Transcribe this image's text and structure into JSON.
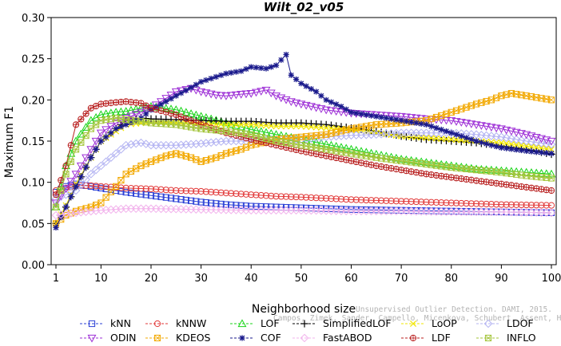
{
  "chart_data": {
    "type": "line",
    "title": "Wilt_02_v05",
    "xlabel": "Neighborhood size",
    "ylabel": "Maximum F1",
    "xlim": [
      1,
      100
    ],
    "ylim": [
      0,
      0.3
    ],
    "x_ticks": [
      1,
      10,
      20,
      30,
      40,
      50,
      60,
      70,
      80,
      90,
      100
    ],
    "y_ticks": [
      0.0,
      0.05,
      0.1,
      0.15,
      0.2,
      0.25,
      0.3
    ],
    "y_tick_labels": [
      "0.00",
      "0.05",
      "0.10",
      "0.15",
      "0.20",
      "0.25",
      "0.30"
    ],
    "grid": false,
    "legend_position": "bottom",
    "series": [
      {
        "name": "kNN",
        "color": "#2a3fd6",
        "marker": "square",
        "points": [
          [
            1,
            0.088
          ],
          [
            3,
            0.095
          ],
          [
            5,
            0.098
          ],
          [
            8,
            0.095
          ],
          [
            10,
            0.093
          ],
          [
            15,
            0.088
          ],
          [
            20,
            0.084
          ],
          [
            25,
            0.08
          ],
          [
            30,
            0.076
          ],
          [
            35,
            0.073
          ],
          [
            40,
            0.071
          ],
          [
            45,
            0.07
          ],
          [
            50,
            0.069
          ],
          [
            60,
            0.067
          ],
          [
            70,
            0.066
          ],
          [
            80,
            0.065
          ],
          [
            90,
            0.064
          ],
          [
            100,
            0.063
          ]
        ]
      },
      {
        "name": "kNNW",
        "color": "#e23a3a",
        "marker": "circle",
        "points": [
          [
            1,
            0.09
          ],
          [
            3,
            0.093
          ],
          [
            5,
            0.096
          ],
          [
            8,
            0.096
          ],
          [
            10,
            0.095
          ],
          [
            15,
            0.093
          ],
          [
            20,
            0.092
          ],
          [
            25,
            0.09
          ],
          [
            30,
            0.089
          ],
          [
            35,
            0.087
          ],
          [
            40,
            0.085
          ],
          [
            45,
            0.083
          ],
          [
            50,
            0.082
          ],
          [
            60,
            0.079
          ],
          [
            70,
            0.077
          ],
          [
            80,
            0.075
          ],
          [
            90,
            0.073
          ],
          [
            100,
            0.072
          ]
        ]
      },
      {
        "name": "LOF",
        "color": "#18d418",
        "marker": "triangle-up",
        "points": [
          [
            1,
            0.07
          ],
          [
            3,
            0.12
          ],
          [
            5,
            0.15
          ],
          [
            8,
            0.175
          ],
          [
            10,
            0.182
          ],
          [
            13,
            0.185
          ],
          [
            15,
            0.186
          ],
          [
            18,
            0.19
          ],
          [
            20,
            0.192
          ],
          [
            25,
            0.188
          ],
          [
            30,
            0.18
          ],
          [
            35,
            0.172
          ],
          [
            40,
            0.164
          ],
          [
            45,
            0.158
          ],
          [
            50,
            0.152
          ],
          [
            55,
            0.146
          ],
          [
            60,
            0.14
          ],
          [
            65,
            0.134
          ],
          [
            70,
            0.128
          ],
          [
            75,
            0.124
          ],
          [
            80,
            0.12
          ],
          [
            85,
            0.116
          ],
          [
            90,
            0.114
          ],
          [
            95,
            0.112
          ],
          [
            100,
            0.11
          ]
        ]
      },
      {
        "name": "SimplifiedLOF",
        "color": "#000000",
        "marker": "plus",
        "points": [
          [
            1,
            0.05
          ],
          [
            3,
            0.07
          ],
          [
            5,
            0.095
          ],
          [
            8,
            0.13
          ],
          [
            10,
            0.15
          ],
          [
            13,
            0.165
          ],
          [
            15,
            0.175
          ],
          [
            18,
            0.178
          ],
          [
            20,
            0.177
          ],
          [
            25,
            0.176
          ],
          [
            30,
            0.175
          ],
          [
            35,
            0.174
          ],
          [
            40,
            0.174
          ],
          [
            45,
            0.172
          ],
          [
            50,
            0.172
          ],
          [
            55,
            0.17
          ],
          [
            60,
            0.166
          ],
          [
            65,
            0.162
          ],
          [
            70,
            0.156
          ],
          [
            75,
            0.152
          ],
          [
            80,
            0.15
          ],
          [
            85,
            0.148
          ],
          [
            90,
            0.144
          ],
          [
            95,
            0.14
          ],
          [
            100,
            0.134
          ]
        ]
      },
      {
        "name": "LoOP",
        "color": "#f2e600",
        "marker": "cross",
        "points": [
          [
            1,
            0.05
          ],
          [
            3,
            0.072
          ],
          [
            5,
            0.098
          ],
          [
            8,
            0.13
          ],
          [
            10,
            0.15
          ],
          [
            13,
            0.162
          ],
          [
            15,
            0.17
          ],
          [
            18,
            0.172
          ],
          [
            20,
            0.172
          ],
          [
            25,
            0.172
          ],
          [
            30,
            0.171
          ],
          [
            35,
            0.17
          ],
          [
            40,
            0.17
          ],
          [
            45,
            0.168
          ],
          [
            50,
            0.168
          ],
          [
            55,
            0.166
          ],
          [
            60,
            0.164
          ],
          [
            65,
            0.16
          ],
          [
            70,
            0.156
          ],
          [
            75,
            0.154
          ],
          [
            80,
            0.152
          ],
          [
            85,
            0.15
          ],
          [
            90,
            0.148
          ],
          [
            95,
            0.144
          ],
          [
            100,
            0.14
          ]
        ]
      },
      {
        "name": "LDOF",
        "color": "#b3b3f2",
        "marker": "diamond",
        "points": [
          [
            1,
            0.08
          ],
          [
            5,
            0.09
          ],
          [
            8,
            0.11
          ],
          [
            10,
            0.12
          ],
          [
            13,
            0.135
          ],
          [
            15,
            0.145
          ],
          [
            18,
            0.148
          ],
          [
            20,
            0.145
          ],
          [
            25,
            0.145
          ],
          [
            30,
            0.147
          ],
          [
            35,
            0.15
          ],
          [
            40,
            0.15
          ],
          [
            45,
            0.152
          ],
          [
            50,
            0.152
          ],
          [
            55,
            0.155
          ],
          [
            60,
            0.157
          ],
          [
            65,
            0.158
          ],
          [
            70,
            0.16
          ],
          [
            75,
            0.16
          ],
          [
            80,
            0.16
          ],
          [
            85,
            0.158
          ],
          [
            90,
            0.155
          ],
          [
            95,
            0.15
          ],
          [
            100,
            0.146
          ]
        ]
      },
      {
        "name": "ODIN",
        "color": "#9d2fd6",
        "marker": "triangle-down",
        "points": [
          [
            1,
            0.075
          ],
          [
            5,
            0.11
          ],
          [
            8,
            0.14
          ],
          [
            10,
            0.16
          ],
          [
            13,
            0.172
          ],
          [
            15,
            0.178
          ],
          [
            18,
            0.185
          ],
          [
            20,
            0.19
          ],
          [
            23,
            0.202
          ],
          [
            25,
            0.21
          ],
          [
            28,
            0.214
          ],
          [
            30,
            0.21
          ],
          [
            33,
            0.206
          ],
          [
            35,
            0.205
          ],
          [
            38,
            0.207
          ],
          [
            40,
            0.208
          ],
          [
            43,
            0.212
          ],
          [
            45,
            0.205
          ],
          [
            48,
            0.198
          ],
          [
            50,
            0.195
          ],
          [
            55,
            0.188
          ],
          [
            60,
            0.184
          ],
          [
            65,
            0.182
          ],
          [
            70,
            0.18
          ],
          [
            75,
            0.177
          ],
          [
            80,
            0.175
          ],
          [
            85,
            0.17
          ],
          [
            90,
            0.165
          ],
          [
            95,
            0.158
          ],
          [
            100,
            0.15
          ]
        ]
      },
      {
        "name": "KDEOS",
        "color": "#f2a800",
        "marker": "square-x",
        "points": [
          [
            1,
            0.05
          ],
          [
            3,
            0.06
          ],
          [
            5,
            0.065
          ],
          [
            8,
            0.07
          ],
          [
            10,
            0.075
          ],
          [
            13,
            0.095
          ],
          [
            15,
            0.11
          ],
          [
            18,
            0.12
          ],
          [
            20,
            0.125
          ],
          [
            23,
            0.132
          ],
          [
            25,
            0.135
          ],
          [
            28,
            0.13
          ],
          [
            30,
            0.125
          ],
          [
            33,
            0.13
          ],
          [
            35,
            0.135
          ],
          [
            38,
            0.14
          ],
          [
            40,
            0.145
          ],
          [
            45,
            0.152
          ],
          [
            50,
            0.155
          ],
          [
            55,
            0.158
          ],
          [
            60,
            0.165
          ],
          [
            65,
            0.17
          ],
          [
            70,
            0.172
          ],
          [
            75,
            0.175
          ],
          [
            80,
            0.185
          ],
          [
            85,
            0.195
          ],
          [
            88,
            0.2
          ],
          [
            90,
            0.205
          ],
          [
            92,
            0.208
          ],
          [
            95,
            0.205
          ],
          [
            98,
            0.202
          ],
          [
            100,
            0.2
          ]
        ]
      },
      {
        "name": "COF",
        "color": "#1a1a8c",
        "marker": "star",
        "points": [
          [
            1,
            0.045
          ],
          [
            3,
            0.07
          ],
          [
            5,
            0.095
          ],
          [
            8,
            0.13
          ],
          [
            10,
            0.15
          ],
          [
            13,
            0.165
          ],
          [
            15,
            0.17
          ],
          [
            18,
            0.178
          ],
          [
            20,
            0.188
          ],
          [
            23,
            0.198
          ],
          [
            25,
            0.205
          ],
          [
            28,
            0.215
          ],
          [
            30,
            0.222
          ],
          [
            33,
            0.228
          ],
          [
            35,
            0.232
          ],
          [
            38,
            0.235
          ],
          [
            40,
            0.24
          ],
          [
            43,
            0.238
          ],
          [
            45,
            0.242
          ],
          [
            47,
            0.255
          ],
          [
            48,
            0.23
          ],
          [
            50,
            0.22
          ],
          [
            53,
            0.21
          ],
          [
            55,
            0.2
          ],
          [
            58,
            0.192
          ],
          [
            60,
            0.185
          ],
          [
            65,
            0.18
          ],
          [
            70,
            0.175
          ],
          [
            75,
            0.17
          ],
          [
            80,
            0.16
          ],
          [
            85,
            0.15
          ],
          [
            90,
            0.142
          ],
          [
            95,
            0.138
          ],
          [
            100,
            0.135
          ]
        ]
      },
      {
        "name": "FastABOD",
        "color": "#f2b3ec",
        "marker": "diamond",
        "points": [
          [
            1,
            0.06
          ],
          [
            5,
            0.063
          ],
          [
            10,
            0.066
          ],
          [
            15,
            0.068
          ],
          [
            20,
            0.068
          ],
          [
            30,
            0.067
          ],
          [
            40,
            0.066
          ],
          [
            50,
            0.066
          ],
          [
            60,
            0.065
          ],
          [
            70,
            0.065
          ],
          [
            80,
            0.064
          ],
          [
            90,
            0.064
          ],
          [
            100,
            0.063
          ]
        ]
      },
      {
        "name": "LDF",
        "color": "#b81f1f",
        "marker": "circle-plus",
        "points": [
          [
            1,
            0.085
          ],
          [
            3,
            0.12
          ],
          [
            5,
            0.17
          ],
          [
            8,
            0.19
          ],
          [
            10,
            0.195
          ],
          [
            13,
            0.197
          ],
          [
            15,
            0.198
          ],
          [
            18,
            0.196
          ],
          [
            20,
            0.19
          ],
          [
            25,
            0.182
          ],
          [
            30,
            0.17
          ],
          [
            35,
            0.16
          ],
          [
            40,
            0.152
          ],
          [
            45,
            0.145
          ],
          [
            50,
            0.138
          ],
          [
            55,
            0.132
          ],
          [
            60,
            0.126
          ],
          [
            65,
            0.12
          ],
          [
            70,
            0.115
          ],
          [
            75,
            0.11
          ],
          [
            80,
            0.106
          ],
          [
            85,
            0.102
          ],
          [
            90,
            0.098
          ],
          [
            95,
            0.094
          ],
          [
            100,
            0.09
          ]
        ]
      },
      {
        "name": "INFLO",
        "color": "#a3c43a",
        "marker": "square-cross",
        "points": [
          [
            1,
            0.07
          ],
          [
            3,
            0.11
          ],
          [
            5,
            0.14
          ],
          [
            8,
            0.165
          ],
          [
            10,
            0.175
          ],
          [
            13,
            0.178
          ],
          [
            15,
            0.176
          ],
          [
            18,
            0.174
          ],
          [
            20,
            0.172
          ],
          [
            25,
            0.17
          ],
          [
            30,
            0.165
          ],
          [
            35,
            0.162
          ],
          [
            40,
            0.158
          ],
          [
            45,
            0.15
          ],
          [
            50,
            0.145
          ],
          [
            55,
            0.14
          ],
          [
            60,
            0.135
          ],
          [
            65,
            0.13
          ],
          [
            70,
            0.126
          ],
          [
            75,
            0.122
          ],
          [
            80,
            0.118
          ],
          [
            85,
            0.115
          ],
          [
            90,
            0.112
          ],
          [
            95,
            0.108
          ],
          [
            100,
            0.105
          ]
        ]
      }
    ]
  },
  "watermark": {
    "line1": "Unsupervised Outlier Detection. DAMI, 2015.",
    "line2": "Campos, Zimek, Sander, Campello, Micenkova, Schubert, Assent, Houle"
  }
}
